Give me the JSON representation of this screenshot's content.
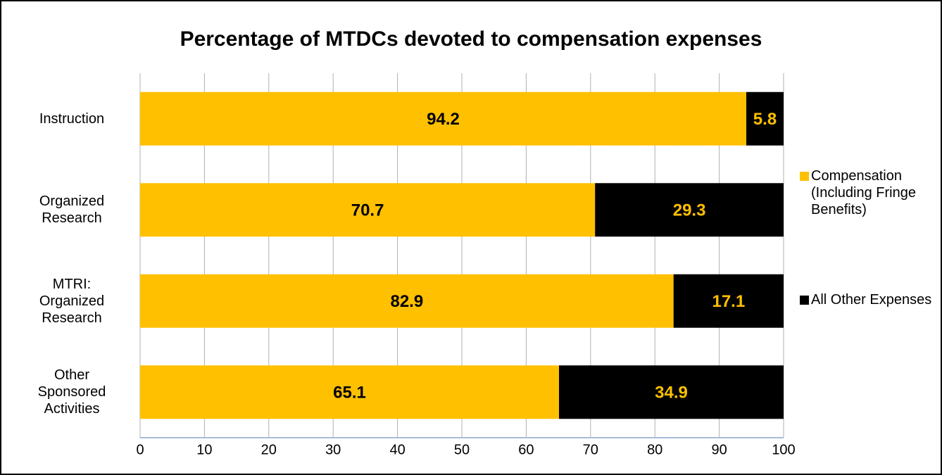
{
  "chart_data": {
    "type": "stacked_bar_horizontal",
    "title": "Percentage of MTDCs devoted to compensation expenses",
    "categories": [
      "Instruction",
      "Organized Research",
      "MTRI: Organized Research",
      "Other Sponsored Activities"
    ],
    "series": [
      {
        "name": "Compensation (Including Fringe Benefits)",
        "color": "#ffc000",
        "label_color": "#000000",
        "values": [
          94.2,
          70.7,
          82.9,
          65.1
        ]
      },
      {
        "name": "All Other Expenses",
        "color": "#000000",
        "label_color": "#ffc000",
        "values": [
          5.8,
          29.3,
          17.1,
          34.9
        ]
      }
    ],
    "xlim": [
      0,
      100
    ],
    "xticks": [
      0,
      10,
      20,
      30,
      40,
      50,
      60,
      70,
      80,
      90,
      100
    ],
    "grid": true,
    "legend": "right"
  }
}
